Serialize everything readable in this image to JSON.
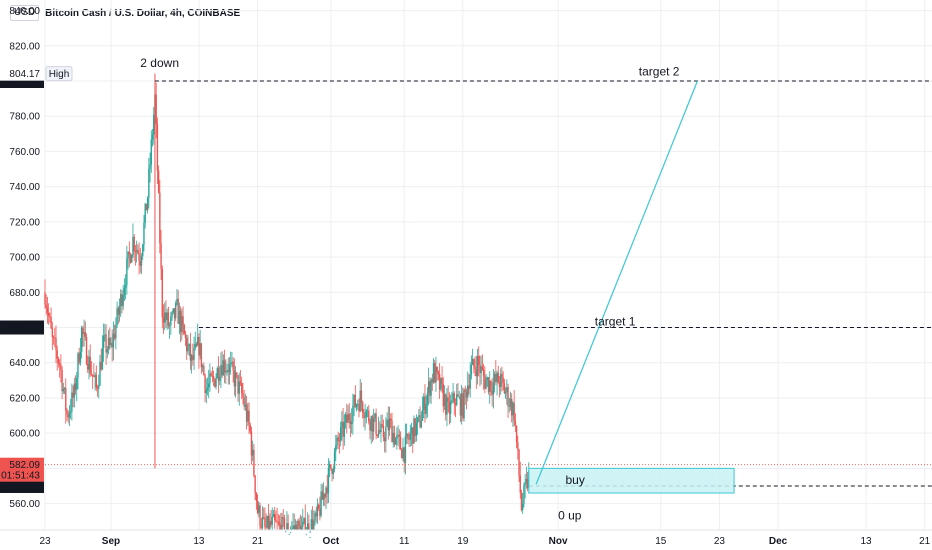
{
  "header": {
    "currency": "USD",
    "title": "Bitcoin Cash / U.S. Dollar, 4h, COINBASE"
  },
  "colors": {
    "up": "#26a69a",
    "down": "#ef5350",
    "annotation_line": "#3cc6d4",
    "buy_box_fill": "#c8f1f4",
    "buy_box_stroke": "#3cc6d4",
    "current_price_line": "#ef5350",
    "grid": "#eeeff2"
  },
  "chart_data": {
    "type": "candlestick",
    "ylim": [
      545,
      846
    ],
    "y_ticks": [
      560,
      580,
      600,
      620,
      640,
      660,
      680,
      700,
      720,
      740,
      760,
      780,
      800,
      820,
      840
    ],
    "y_tick_labels": [
      "560.00",
      "580.00",
      "600.00",
      "620.00",
      "640.00",
      "660.00",
      "680.00",
      "700.00",
      "720.00",
      "740.00",
      "760.00",
      "780.00",
      "800.00",
      "820.00",
      "840.00"
    ],
    "x_axis": {
      "start_date": "2021-08-23",
      "end_date": "2021-12-22",
      "ticks": [
        {
          "date": "2021-08-23",
          "label": "23",
          "month": false
        },
        {
          "date": "2021-09-01",
          "label": "Sep",
          "month": true
        },
        {
          "date": "2021-09-13",
          "label": "13",
          "month": false
        },
        {
          "date": "2021-09-21",
          "label": "21",
          "month": false
        },
        {
          "date": "2021-10-01",
          "label": "Oct",
          "month": true
        },
        {
          "date": "2021-10-11",
          "label": "11",
          "month": false
        },
        {
          "date": "2021-10-19",
          "label": "19",
          "month": false
        },
        {
          "date": "2021-11-01",
          "label": "Nov",
          "month": true
        },
        {
          "date": "2021-11-15",
          "label": "15",
          "month": false
        },
        {
          "date": "2021-11-23",
          "label": "23",
          "month": false
        },
        {
          "date": "2021-12-01",
          "label": "Dec",
          "month": true
        },
        {
          "date": "2021-12-13",
          "label": "13",
          "month": false
        },
        {
          "date": "2021-12-21",
          "label": "21",
          "month": false
        }
      ]
    },
    "price_path": [
      [
        "2021-08-23",
        680
      ],
      [
        "2021-08-24",
        652
      ],
      [
        "2021-08-25",
        640
      ],
      [
        "2021-08-26",
        610
      ],
      [
        "2021-08-27",
        622
      ],
      [
        "2021-08-28",
        658
      ],
      [
        "2021-08-29",
        640
      ],
      [
        "2021-08-30",
        625
      ],
      [
        "2021-08-31",
        650
      ],
      [
        "2021-09-01",
        648
      ],
      [
        "2021-09-02",
        668
      ],
      [
        "2021-09-03",
        690
      ],
      [
        "2021-09-04",
        710
      ],
      [
        "2021-09-05",
        700
      ],
      [
        "2021-09-06",
        735
      ],
      [
        "2021-09-07",
        790
      ],
      [
        "2021-09-08",
        670
      ],
      [
        "2021-09-09",
        660
      ],
      [
        "2021-09-10",
        670
      ],
      [
        "2021-09-11",
        655
      ],
      [
        "2021-09-12",
        640
      ],
      [
        "2021-09-13",
        650
      ],
      [
        "2021-09-14",
        625
      ],
      [
        "2021-09-15",
        630
      ],
      [
        "2021-09-16",
        640
      ],
      [
        "2021-09-17",
        638
      ],
      [
        "2021-09-18",
        630
      ],
      [
        "2021-09-19",
        620
      ],
      [
        "2021-09-20",
        600
      ],
      [
        "2021-09-21",
        556
      ],
      [
        "2021-09-22",
        545
      ],
      [
        "2021-09-23",
        548
      ],
      [
        "2021-09-24",
        546
      ],
      [
        "2021-09-25",
        545
      ],
      [
        "2021-09-26",
        546
      ],
      [
        "2021-09-27",
        545
      ],
      [
        "2021-09-28",
        546
      ],
      [
        "2021-09-29",
        550
      ],
      [
        "2021-09-30",
        565
      ],
      [
        "2021-10-01",
        580
      ],
      [
        "2021-10-02",
        595
      ],
      [
        "2021-10-03",
        605
      ],
      [
        "2021-10-04",
        615
      ],
      [
        "2021-10-05",
        620
      ],
      [
        "2021-10-06",
        610
      ],
      [
        "2021-10-07",
        605
      ],
      [
        "2021-10-08",
        598
      ],
      [
        "2021-10-09",
        605
      ],
      [
        "2021-10-10",
        595
      ],
      [
        "2021-10-11",
        590
      ],
      [
        "2021-10-12",
        600
      ],
      [
        "2021-10-13",
        605
      ],
      [
        "2021-10-14",
        620
      ],
      [
        "2021-10-15",
        635
      ],
      [
        "2021-10-16",
        625
      ],
      [
        "2021-10-17",
        612
      ],
      [
        "2021-10-18",
        620
      ],
      [
        "2021-10-19",
        615
      ],
      [
        "2021-10-20",
        635
      ],
      [
        "2021-10-21",
        640
      ],
      [
        "2021-10-22",
        630
      ],
      [
        "2021-10-23",
        628
      ],
      [
        "2021-10-24",
        630
      ],
      [
        "2021-10-25",
        622
      ],
      [
        "2021-10-26",
        612
      ],
      [
        "2021-10-27",
        558
      ],
      [
        "2021-10-28",
        575
      ]
    ],
    "high_marker": {
      "value": 804.17,
      "label": "804.17",
      "tag": "High"
    },
    "current_price": {
      "value": 582.09,
      "label": "582.09",
      "countdown": "01:51:43"
    },
    "price_labels": [
      {
        "value": 800,
        "label": "800.00"
      },
      {
        "value": 660,
        "label": "660.00"
      },
      {
        "value": 570,
        "label": "570.00"
      }
    ],
    "horizontal_lines": [
      {
        "value": 800,
        "from": "2021-09-07",
        "to": "2021-12-22"
      },
      {
        "value": 660,
        "from": "2021-09-13",
        "to": "2021-12-22"
      },
      {
        "value": 570,
        "from": "2021-10-28",
        "to": "2021-12-22"
      }
    ],
    "trend_line": {
      "from": {
        "date": "2021-10-29",
        "value": 571
      },
      "to": {
        "date": "2021-11-20",
        "value": 800
      }
    },
    "buy_box": {
      "from": "2021-10-28",
      "to": "2021-11-25",
      "top": 580,
      "bottom": 566
    },
    "annotations": [
      {
        "text": "2 down",
        "date": "2021-09-05",
        "value": 808
      },
      {
        "text": "target 2",
        "date": "2021-11-12",
        "value": 803
      },
      {
        "text": "target 1",
        "date": "2021-11-06",
        "value": 661
      },
      {
        "text": "buy",
        "date": "2021-11-02",
        "value": 571
      },
      {
        "text": "0 up",
        "date": "2021-11-01",
        "value": 551
      }
    ]
  }
}
